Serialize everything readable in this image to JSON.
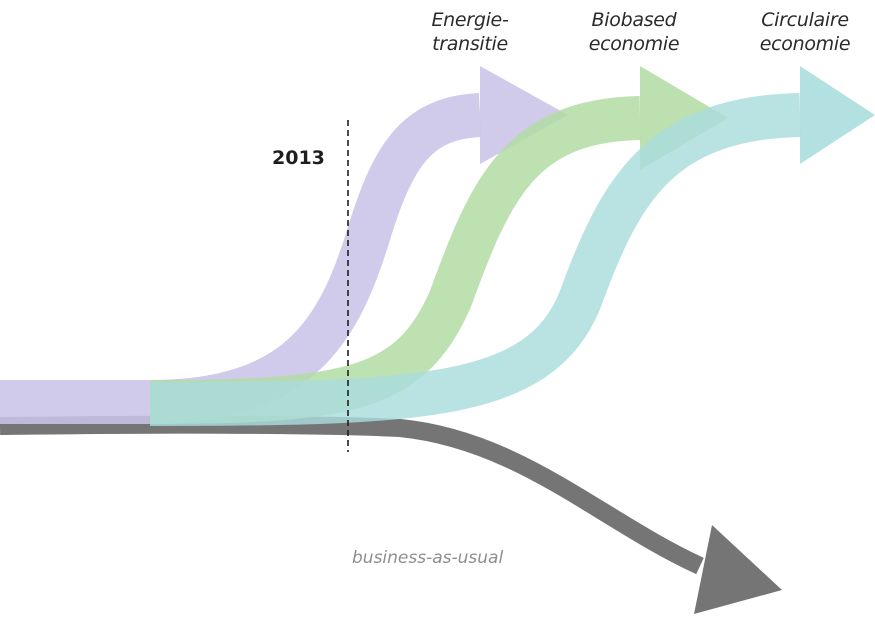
{
  "year_marker": "2013",
  "pathways": [
    {
      "id": "energie",
      "line1": "Energie-",
      "line2": "transitie",
      "color": "#c9c4e8"
    },
    {
      "id": "biobased",
      "line1": "Biobased",
      "line2": "economie",
      "color": "#b3dca4"
    },
    {
      "id": "circulair",
      "line1": "Circulaire",
      "line2": "economie",
      "color": "#a9dcdc"
    }
  ],
  "baseline": {
    "label": "business-as-usual",
    "color": "#6e6e6e"
  }
}
